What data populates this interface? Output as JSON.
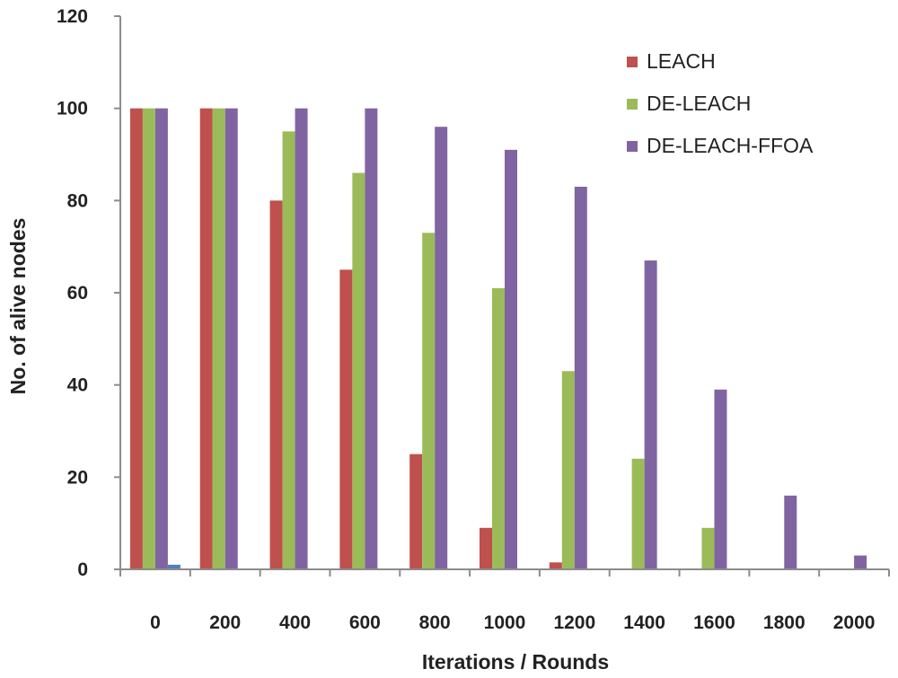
{
  "chart_data": {
    "type": "bar",
    "title": "",
    "xlabel": "Iterations / Rounds",
    "ylabel": "No. of alive nodes",
    "ylim": [
      0,
      120
    ],
    "yticks": [
      "0",
      "20",
      "40",
      "60",
      "80",
      "100",
      "120"
    ],
    "categories": [
      "0",
      "200",
      "400",
      "600",
      "800",
      "1000",
      "1200",
      "1400",
      "1600",
      "1800",
      "2000"
    ],
    "legend_position": "top-right",
    "series": [
      {
        "name": "LEACH",
        "color": "#c0504d",
        "values": [
          100,
          100,
          80,
          65,
          25,
          9,
          1.5,
          0,
          0,
          0,
          0
        ]
      },
      {
        "name": "DE-LEACH",
        "color": "#9bbb59",
        "values": [
          100,
          100,
          95,
          86,
          73,
          61,
          43,
          24,
          9,
          0,
          0
        ]
      },
      {
        "name": "DE-LEACH-FFOA",
        "color": "#8064a2",
        "values": [
          100,
          100,
          100,
          100,
          96,
          91,
          83,
          67,
          39,
          16,
          3
        ]
      },
      {
        "name": "",
        "color": "#4f81bd",
        "values": [
          1,
          0,
          0,
          0,
          0,
          0,
          0,
          0,
          0,
          0,
          0
        ]
      }
    ]
  }
}
